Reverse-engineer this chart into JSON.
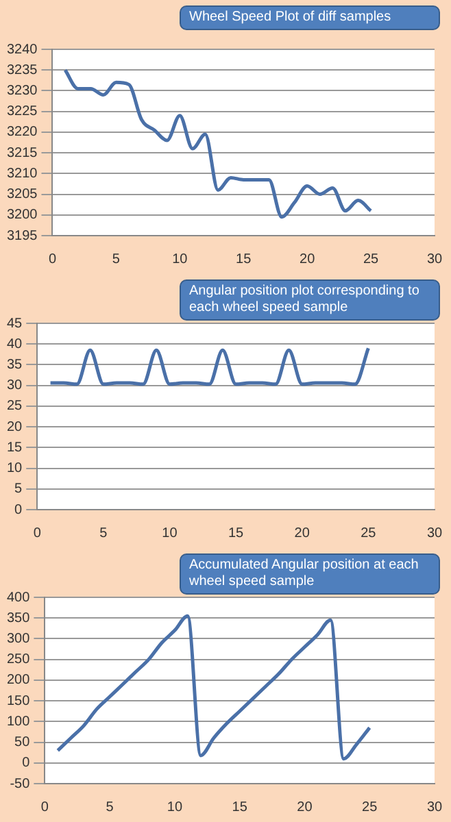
{
  "chart_data": [
    {
      "type": "line",
      "annotations": [
        "Wheel Speed Plot of diff samples"
      ],
      "x": [
        1,
        2,
        3,
        4,
        5,
        6,
        7,
        8,
        9,
        10,
        11,
        12,
        13,
        14,
        15,
        16,
        17,
        18,
        19,
        20,
        21,
        22,
        23,
        24,
        25
      ],
      "values": [
        3235,
        3230.5,
        3230.5,
        3229,
        3232,
        3231.5,
        3223,
        3220.5,
        3218,
        3224,
        3216,
        3219.5,
        3206,
        3209,
        3208.5,
        3208.5,
        3208.5,
        3199.5,
        3203,
        3207,
        3205,
        3206.5,
        3201,
        3203.5,
        3201
      ],
      "color": "#4a70a8",
      "xlim": [
        0,
        30
      ],
      "xticks": [
        0,
        5,
        10,
        15,
        20,
        25,
        30
      ],
      "ylim": [
        3195,
        3240
      ],
      "yticks": [
        3195,
        3200,
        3205,
        3210,
        3215,
        3220,
        3225,
        3230,
        3235,
        3240
      ],
      "grid": "y",
      "marker": "none"
    },
    {
      "type": "line",
      "annotations": [
        "Angular position plot corresponding to each wheel speed sample"
      ],
      "x": [
        1,
        2,
        3,
        4,
        5,
        6,
        7,
        8,
        9,
        10,
        11,
        12,
        13,
        14,
        15,
        16,
        17,
        18,
        19,
        20,
        21,
        22,
        23,
        24,
        25
      ],
      "values": [
        30.6,
        30.6,
        30.3,
        38.5,
        30.3,
        30.6,
        30.6,
        30.3,
        38.5,
        30.3,
        30.6,
        30.6,
        30.3,
        38.5,
        30.3,
        30.6,
        30.6,
        30.3,
        38.5,
        30.3,
        30.6,
        30.6,
        30.6,
        30.3,
        39
      ],
      "color": "#4a70a8",
      "xlim": [
        0,
        30
      ],
      "xticks": [
        0,
        5,
        10,
        15,
        20,
        25,
        30
      ],
      "ylim": [
        0,
        45
      ],
      "yticks": [
        0,
        5,
        10,
        15,
        20,
        25,
        30,
        35,
        40,
        45
      ],
      "grid": "y",
      "marker": "none"
    },
    {
      "type": "line",
      "annotations": [
        "Accumulated Angular position at each wheel speed sample"
      ],
      "x": [
        1,
        2,
        3,
        4,
        5,
        6,
        7,
        8,
        9,
        10,
        11,
        12,
        13,
        14,
        15,
        16,
        17,
        18,
        19,
        20,
        21,
        22,
        23,
        24,
        25
      ],
      "values": [
        30,
        60,
        90,
        130,
        160,
        190,
        220,
        250,
        290,
        320,
        355,
        18,
        60,
        95,
        125,
        155,
        185,
        215,
        250,
        280,
        310,
        345,
        10,
        45,
        85
      ],
      "color": "#4a70a8",
      "xlim": [
        0,
        30
      ],
      "xticks": [
        0,
        5,
        10,
        15,
        20,
        25,
        30
      ],
      "ylim": [
        -50,
        400
      ],
      "yticks": [
        -50,
        0,
        50,
        100,
        150,
        200,
        250,
        300,
        350,
        400
      ],
      "grid": "y",
      "marker": "none"
    }
  ]
}
